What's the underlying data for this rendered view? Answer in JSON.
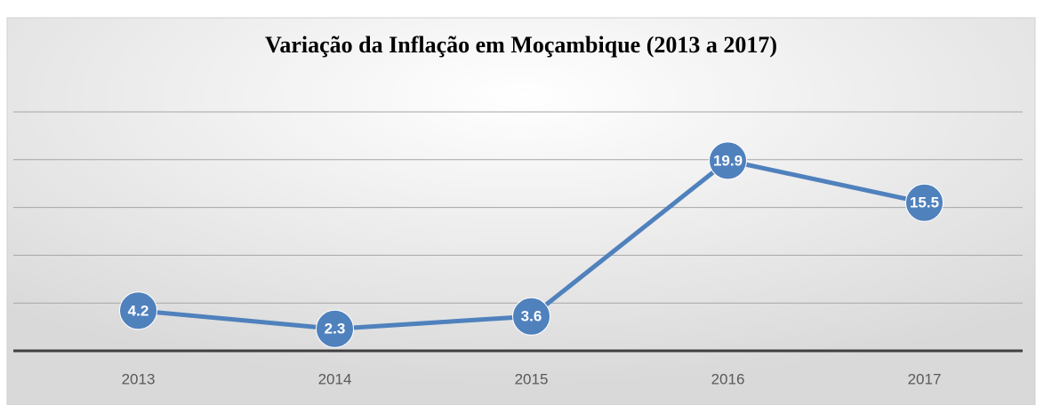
{
  "chart_data": {
    "type": "line",
    "title": "Variação da Inflação em Moçambique (2013 a 2017)",
    "categories": [
      "2013",
      "2014",
      "2015",
      "2016",
      "2017"
    ],
    "series": [
      {
        "name": "Inflação",
        "color": "#4f81bd",
        "values": [
          4.2,
          2.3,
          3.6,
          19.9,
          15.5
        ]
      }
    ],
    "ylim": [
      0,
      25
    ],
    "yticks": [
      0,
      5,
      10,
      15,
      20,
      25
    ],
    "grid": true
  }
}
